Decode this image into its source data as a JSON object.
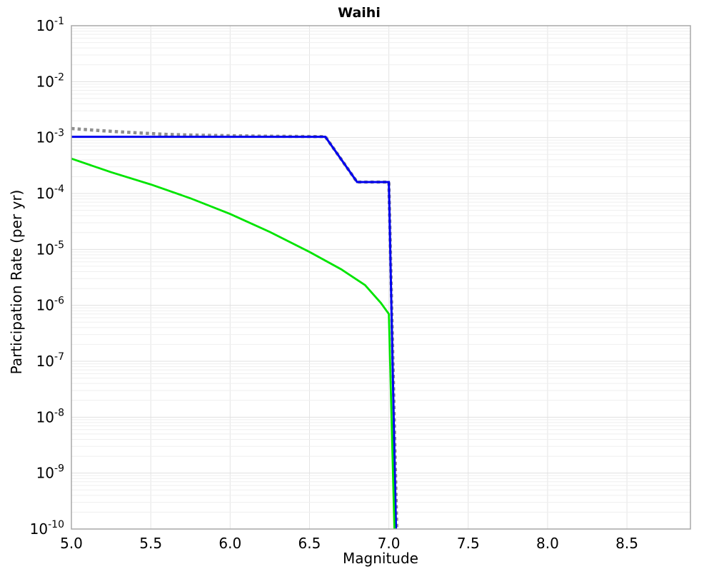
{
  "figure": {
    "background": "#ffffff"
  },
  "chart_data": {
    "type": "line",
    "title": "Waihi",
    "xlabel": "Magnitude",
    "ylabel": "Participation Rate (per yr)",
    "xlim": [
      5.0,
      8.9
    ],
    "ylim": [
      1e-10,
      0.1
    ],
    "x_tick_labels": [
      "5.0",
      "5.5",
      "6.0",
      "6.5",
      "7.0",
      "7.5",
      "8.0",
      "8.5"
    ],
    "y_tick_exponents": [
      -1,
      -2,
      -3,
      -4,
      -5,
      -6,
      -7,
      -8,
      -9,
      -10
    ],
    "grid": {
      "enabled": true,
      "major_color": "#e0e0e0",
      "minor_color": "#efefef",
      "vertical_color": "#e4e4e4"
    },
    "border_color": "#a8a8a8",
    "legend": "none",
    "series": [
      {
        "name": "gray-dotted",
        "color": "#8f8f8f",
        "style": "dotted",
        "stroke_width": 4.5,
        "points": [
          [
            5.0,
            0.00145
          ],
          [
            5.2,
            0.00132
          ],
          [
            5.4,
            0.00122
          ],
          [
            5.6,
            0.00114
          ],
          [
            5.8,
            0.0011
          ],
          [
            6.0,
            0.00108
          ],
          [
            6.2,
            0.00106
          ],
          [
            6.4,
            0.00105
          ],
          [
            6.6,
            0.00104
          ],
          [
            6.8,
            0.00016
          ],
          [
            7.0,
            0.00016
          ],
          [
            7.05,
            1e-10
          ]
        ]
      },
      {
        "name": "blue-solid",
        "color": "#0000ee",
        "style": "solid",
        "stroke_width": 3,
        "points": [
          [
            5.0,
            0.00103
          ],
          [
            6.6,
            0.00103
          ],
          [
            6.8,
            0.00016
          ],
          [
            7.0,
            0.00016
          ],
          [
            7.045,
            1e-10
          ]
        ]
      },
      {
        "name": "green-solid",
        "color": "#00e400",
        "style": "solid",
        "stroke_width": 2.8,
        "points": [
          [
            5.0,
            0.00042
          ],
          [
            5.25,
            0.00024
          ],
          [
            5.5,
            0.000145
          ],
          [
            5.75,
            8.2e-05
          ],
          [
            6.0,
            4.3e-05
          ],
          [
            6.25,
            2.05e-05
          ],
          [
            6.5,
            9e-06
          ],
          [
            6.7,
            4.4e-06
          ],
          [
            6.85,
            2.3e-06
          ],
          [
            6.95,
            1.1e-06
          ],
          [
            7.0,
            7e-07
          ],
          [
            7.035,
            1e-10
          ]
        ]
      }
    ]
  }
}
